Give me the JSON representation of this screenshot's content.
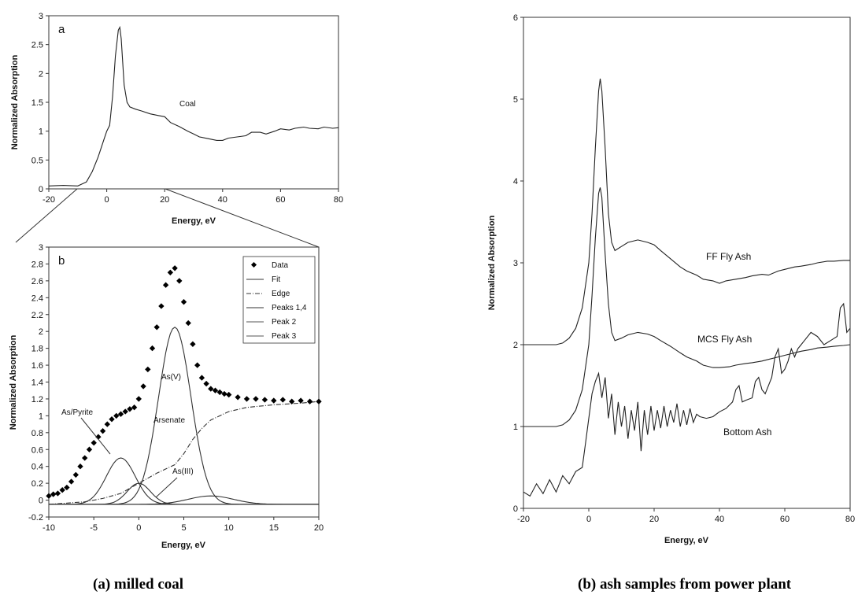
{
  "captions": {
    "left": "(a) milled coal",
    "right": "(b) ash samples from power plant"
  },
  "chart_data": [
    {
      "id": "a",
      "type": "line",
      "panel_label": "a",
      "xlabel": "Energy, eV",
      "ylabel": "Normalized Absorption",
      "xlim": [
        -20,
        80
      ],
      "ylim": [
        0,
        3
      ],
      "xticks": [
        "-20",
        "0",
        "20",
        "40",
        "60",
        "80"
      ],
      "yticks": [
        "0",
        "0.5",
        "1",
        "1.5",
        "2",
        "2.5",
        "3"
      ],
      "series": [
        {
          "name": "Coal",
          "x": [
            -20,
            -15,
            -10,
            -7,
            -5,
            -3,
            -1,
            0,
            1,
            2,
            3,
            4,
            4.5,
            5,
            6,
            7,
            8,
            10,
            12,
            15,
            18,
            20,
            22,
            25,
            28,
            30,
            32,
            35,
            38,
            40,
            42,
            45,
            48,
            50,
            53,
            55,
            58,
            60,
            63,
            65,
            68,
            70,
            73,
            75,
            78,
            80
          ],
          "y": [
            0.05,
            0.06,
            0.05,
            0.12,
            0.3,
            0.55,
            0.85,
            1.0,
            1.1,
            1.6,
            2.3,
            2.75,
            2.8,
            2.6,
            1.8,
            1.5,
            1.42,
            1.38,
            1.35,
            1.3,
            1.27,
            1.25,
            1.15,
            1.08,
            1.0,
            0.95,
            0.9,
            0.87,
            0.84,
            0.84,
            0.88,
            0.9,
            0.92,
            0.98,
            0.98,
            0.95,
            1.0,
            1.04,
            1.02,
            1.05,
            1.07,
            1.05,
            1.04,
            1.07,
            1.05,
            1.06
          ]
        }
      ],
      "annotations": [
        "Coal"
      ]
    },
    {
      "id": "b",
      "type": "line",
      "panel_label": "b",
      "xlabel": "Energy, eV",
      "ylabel": "Normalized Absorption",
      "xlim": [
        -10,
        20
      ],
      "ylim": [
        -0.2,
        3
      ],
      "xticks": [
        "-10",
        "-5",
        "0",
        "5",
        "10",
        "15",
        "20"
      ],
      "yticks": [
        "-0.2",
        "0",
        "0.2",
        "0.4",
        "0.6",
        "0.8",
        "1",
        "1.2",
        "1.4",
        "1.6",
        "1.8",
        "2",
        "2.2",
        "2.4",
        "2.6",
        "2.8",
        "3"
      ],
      "legend": [
        "Data",
        "Fit",
        "Edge",
        "Peaks 1,4",
        "Peak 2",
        "Peak 3"
      ],
      "legend_position": "top-right",
      "data_points": {
        "x": [
          -10,
          -9.5,
          -9,
          -8.5,
          -8,
          -7.5,
          -7,
          -6.5,
          -6,
          -5.5,
          -5,
          -4.5,
          -4,
          -3.5,
          -3,
          -2.5,
          -2,
          -1.5,
          -1,
          -0.5,
          0,
          0.5,
          1,
          1.5,
          2,
          2.5,
          3,
          3.5,
          4,
          4.5,
          5,
          5.5,
          6,
          6.5,
          7,
          7.5,
          8,
          8.5,
          9,
          9.5,
          10,
          11,
          12,
          13,
          14,
          15,
          16,
          17,
          18,
          19,
          20
        ],
        "y": [
          0.05,
          0.07,
          0.08,
          0.12,
          0.15,
          0.22,
          0.3,
          0.4,
          0.5,
          0.6,
          0.68,
          0.75,
          0.82,
          0.9,
          0.96,
          1.0,
          1.02,
          1.05,
          1.08,
          1.1,
          1.2,
          1.35,
          1.55,
          1.8,
          2.05,
          2.3,
          2.55,
          2.7,
          2.75,
          2.6,
          2.35,
          2.1,
          1.85,
          1.6,
          1.45,
          1.38,
          1.32,
          1.3,
          1.28,
          1.26,
          1.25,
          1.22,
          1.2,
          1.2,
          1.19,
          1.18,
          1.19,
          1.17,
          1.18,
          1.17,
          1.17
        ]
      },
      "series": [
        {
          "name": "Peak 2",
          "center": 4,
          "height": 2.1,
          "width": 1.8
        },
        {
          "name": "Peaks 1,4",
          "center": -2,
          "height": 0.55,
          "width": 1.6
        },
        {
          "name": "Peak 3",
          "center": 0,
          "height": 0.25,
          "width": 1.3
        },
        {
          "name": "Peaks 1,4",
          "center": 8,
          "height": 0.1,
          "width": 2.5
        }
      ],
      "edge": {
        "x": [
          -10,
          -6,
          -4,
          -2,
          0,
          2,
          4,
          5,
          6,
          7,
          8,
          10,
          12,
          15,
          18,
          20
        ],
        "y": [
          -0.05,
          -0.02,
          0.02,
          0.08,
          0.2,
          0.32,
          0.42,
          0.55,
          0.72,
          0.85,
          0.95,
          1.05,
          1.1,
          1.13,
          1.15,
          1.17
        ]
      },
      "baseline": {
        "x": [
          -10,
          20
        ],
        "y": [
          -0.05,
          -0.05
        ]
      },
      "annotations": [
        "As/Pyrite",
        "As(V)",
        "Arsenate",
        "As(III)"
      ]
    },
    {
      "id": "c",
      "type": "line",
      "xlabel": "Energy, eV",
      "ylabel": "Normalized Absorption",
      "xlim": [
        -20,
        80
      ],
      "ylim": [
        0,
        6
      ],
      "xticks": [
        "-20",
        "0",
        "20",
        "40",
        "60",
        "80"
      ],
      "yticks": [
        "0",
        "1",
        "2",
        "3",
        "4",
        "5",
        "6"
      ],
      "series": [
        {
          "name": "FF Fly Ash",
          "x": [
            -20,
            -15,
            -10,
            -8,
            -6,
            -4,
            -2,
            0,
            1,
            2,
            3,
            3.5,
            4,
            5,
            6,
            7,
            8,
            10,
            12,
            15,
            18,
            20,
            22,
            25,
            28,
            30,
            33,
            35,
            38,
            40,
            42,
            45,
            48,
            50,
            53,
            55,
            58,
            60,
            63,
            65,
            68,
            70,
            73,
            75,
            78,
            80
          ],
          "y": [
            2.0,
            2.0,
            2.0,
            2.02,
            2.08,
            2.2,
            2.45,
            3.0,
            3.6,
            4.4,
            5.1,
            5.25,
            5.1,
            4.4,
            3.6,
            3.25,
            3.15,
            3.2,
            3.25,
            3.28,
            3.25,
            3.22,
            3.15,
            3.05,
            2.95,
            2.9,
            2.85,
            2.8,
            2.78,
            2.75,
            2.78,
            2.8,
            2.82,
            2.84,
            2.86,
            2.85,
            2.9,
            2.92,
            2.95,
            2.96,
            2.98,
            3.0,
            3.02,
            3.02,
            3.03,
            3.03
          ]
        },
        {
          "name": "MCS Fly Ash",
          "x": [
            -20,
            -15,
            -10,
            -8,
            -6,
            -4,
            -2,
            0,
            1,
            2,
            3,
            3.5,
            4,
            5,
            6,
            7,
            8,
            10,
            12,
            15,
            18,
            20,
            22,
            25,
            28,
            30,
            33,
            35,
            38,
            40,
            43,
            45,
            48,
            50,
            53,
            55,
            58,
            60,
            63,
            65,
            68,
            70,
            73,
            75,
            78,
            80
          ],
          "y": [
            1.0,
            1.0,
            1.0,
            1.02,
            1.08,
            1.2,
            1.45,
            2.0,
            2.6,
            3.3,
            3.85,
            3.92,
            3.8,
            3.1,
            2.5,
            2.15,
            2.05,
            2.08,
            2.12,
            2.15,
            2.13,
            2.1,
            2.05,
            1.98,
            1.9,
            1.85,
            1.8,
            1.75,
            1.72,
            1.72,
            1.73,
            1.75,
            1.77,
            1.78,
            1.8,
            1.82,
            1.85,
            1.87,
            1.9,
            1.92,
            1.94,
            1.96,
            1.97,
            1.98,
            1.99,
            2.0
          ]
        },
        {
          "name": "Bottom Ash",
          "x": [
            -20,
            -18,
            -16,
            -14,
            -12,
            -10,
            -8,
            -6,
            -4,
            -2,
            -1,
            0,
            1,
            2,
            3,
            4,
            5,
            6,
            7,
            8,
            9,
            10,
            11,
            12,
            13,
            14,
            15,
            16,
            17,
            18,
            19,
            20,
            21,
            22,
            23,
            24,
            25,
            26,
            27,
            28,
            29,
            30,
            31,
            32,
            33,
            34,
            36,
            38,
            40,
            42,
            44,
            45,
            46,
            47,
            48,
            50,
            51,
            52,
            53,
            54,
            56,
            57,
            58,
            59,
            60,
            61,
            62,
            63,
            64,
            66,
            68,
            70,
            72,
            74,
            76,
            77,
            78,
            79,
            80
          ],
          "y": [
            0.2,
            0.15,
            0.3,
            0.18,
            0.35,
            0.2,
            0.4,
            0.3,
            0.45,
            0.5,
            0.8,
            1.1,
            1.4,
            1.55,
            1.65,
            1.35,
            1.6,
            1.1,
            1.4,
            0.9,
            1.3,
            1.0,
            1.25,
            0.85,
            1.2,
            0.95,
            1.3,
            0.7,
            1.2,
            0.9,
            1.25,
            0.95,
            1.2,
            0.98,
            1.25,
            1.0,
            1.2,
            1.05,
            1.28,
            1.0,
            1.2,
            1.02,
            1.22,
            1.05,
            1.15,
            1.12,
            1.1,
            1.12,
            1.18,
            1.22,
            1.3,
            1.45,
            1.5,
            1.3,
            1.32,
            1.35,
            1.55,
            1.6,
            1.45,
            1.4,
            1.6,
            1.85,
            1.95,
            1.65,
            1.7,
            1.8,
            1.95,
            1.85,
            1.95,
            2.05,
            2.15,
            2.1,
            2.0,
            2.05,
            2.1,
            2.45,
            2.5,
            2.15,
            2.2
          ]
        }
      ],
      "annotations": [
        "FF Fly Ash",
        "MCS Fly Ash",
        "Bottom Ash"
      ]
    }
  ]
}
